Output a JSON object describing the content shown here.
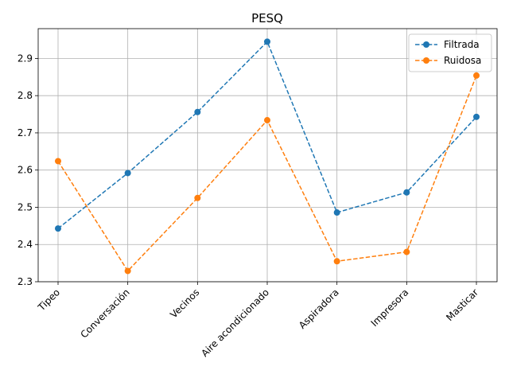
{
  "chart_data": {
    "type": "line",
    "title": "PESQ",
    "xlabel": "",
    "ylabel": "",
    "categories": [
      "Tipeo",
      "Conversación",
      "Vecinos",
      "Aire acondicionado",
      "Aspiradora",
      "Impresora",
      "Masticar"
    ],
    "series": [
      {
        "name": "Filtrada",
        "color": "#1f77b4",
        "line_style": "dashed",
        "marker": "circle",
        "values": [
          2.443,
          2.592,
          2.756,
          2.945,
          2.486,
          2.54,
          2.743
        ]
      },
      {
        "name": "Ruidosa",
        "color": "#ff7f0e",
        "line_style": "dashed",
        "marker": "circle",
        "values": [
          2.624,
          2.329,
          2.525,
          2.734,
          2.355,
          2.38,
          2.854
        ]
      }
    ],
    "ylim": [
      2.3,
      2.98
    ],
    "yticks": [
      2.3,
      2.4,
      2.5,
      2.6,
      2.7,
      2.8,
      2.9
    ],
    "ytick_labels": [
      "2.3",
      "2.4",
      "2.5",
      "2.6",
      "2.7",
      "2.8",
      "2.9"
    ],
    "grid": true,
    "legend_position": "top-right"
  }
}
